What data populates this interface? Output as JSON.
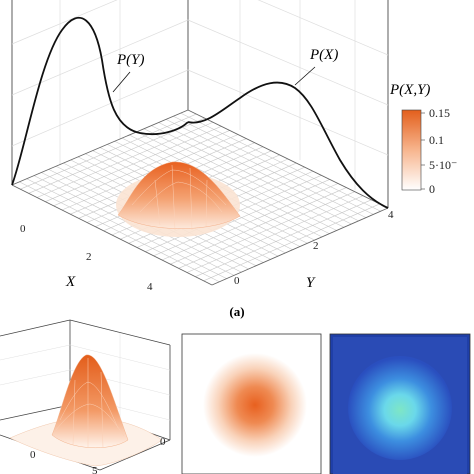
{
  "top_plot": {
    "curve_labels": {
      "py": "P(Y)",
      "px": "P(X)"
    },
    "axis_labels": {
      "x": "X",
      "y": "Y"
    },
    "x_ticks": [
      "0",
      "2",
      "4"
    ],
    "y_ticks": [
      "0",
      "2",
      "4"
    ],
    "colorbar": {
      "title": "P(X,Y)",
      "ticks": [
        "0.15",
        "0.1",
        "5·10⁻",
        "0"
      ]
    }
  },
  "caption": "(a)",
  "bottom_plot": {
    "x_ticks": [
      "0",
      "5"
    ],
    "y_ticks": [
      "0"
    ]
  },
  "colors": {
    "orange": "#e8692a",
    "line": "#111111",
    "grid": "#c8c8c8",
    "jet_bg": "#1f3fa8"
  },
  "chart_data": [
    {
      "type": "area",
      "title": "",
      "xlabel": "X",
      "ylabel": "Y",
      "zlabel": "P(X,Y)",
      "xlim": [
        0,
        4
      ],
      "ylim": [
        0,
        4
      ],
      "zlim": [
        0,
        0.15
      ],
      "surface_peak": {
        "x": 2,
        "y": 2,
        "z": 0.15
      },
      "series": [
        {
          "name": "P(Y)",
          "kind": "marginal",
          "values": [
            0.02,
            0.34,
            0.08,
            0.03,
            0.02
          ]
        },
        {
          "name": "P(X)",
          "kind": "marginal",
          "values": [
            0.02,
            0.05,
            0.2,
            0.08,
            0.03
          ]
        }
      ],
      "marginal_x": [
        0,
        1,
        2,
        3,
        4
      ]
    },
    {
      "type": "area",
      "title": "",
      "xticks": [
        0,
        5
      ],
      "yticks": [
        0
      ]
    },
    {
      "type": "heatmap",
      "title": "",
      "colormap": "orange"
    },
    {
      "type": "heatmap",
      "title": "",
      "colormap": "jet"
    }
  ]
}
